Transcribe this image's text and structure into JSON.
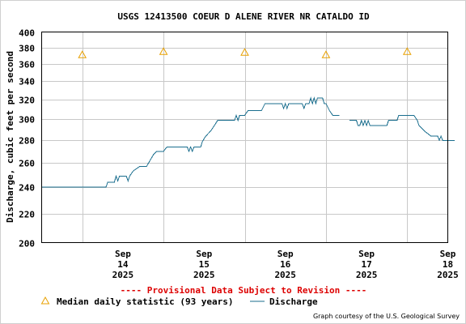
{
  "chart_data": {
    "type": "line",
    "title": "USGS 12413500 COEUR D ALENE RIVER NR CATALDO ID",
    "ylabel": "Discharge, cubic feet per second",
    "xlabel": "",
    "y_scale": "log",
    "ylim": [
      200,
      400
    ],
    "y_ticks": [
      200,
      220,
      240,
      260,
      280,
      300,
      320,
      340,
      360,
      380,
      400
    ],
    "x_range": [
      "2025-09-13 12:00",
      "2025-09-18 12:00"
    ],
    "x_ticks": [
      {
        "date": "2025-09-14",
        "month": "Sep",
        "day": "14",
        "year": "2025"
      },
      {
        "date": "2025-09-15",
        "month": "Sep",
        "day": "15",
        "year": "2025"
      },
      {
        "date": "2025-09-16",
        "month": "Sep",
        "day": "16",
        "year": "2025"
      },
      {
        "date": "2025-09-17",
        "month": "Sep",
        "day": "17",
        "year": "2025"
      },
      {
        "date": "2025-09-18",
        "month": "Sep",
        "day": "18",
        "year": "2025"
      }
    ],
    "grid": true,
    "legend_position": "bottom",
    "series": [
      {
        "name": "Median daily statistic (93 years)",
        "marker": "triangle",
        "color": "#e8a000",
        "points": [
          {
            "x": "2025-09-14 00:00",
            "y": 371
          },
          {
            "x": "2025-09-15 00:00",
            "y": 375
          },
          {
            "x": "2025-09-16 00:00",
            "y": 374
          },
          {
            "x": "2025-09-17 00:00",
            "y": 371
          },
          {
            "x": "2025-09-18 00:00",
            "y": 375
          }
        ]
      },
      {
        "name": "Discharge",
        "color": "#1a6e8e",
        "segments": [
          [
            {
              "x": "2025-09-13 12:00",
              "y": 240
            },
            {
              "x": "2025-09-14 07:00",
              "y": 240
            },
            {
              "x": "2025-09-14 07:30",
              "y": 244
            },
            {
              "x": "2025-09-14 09:30",
              "y": 244
            },
            {
              "x": "2025-09-14 10:00",
              "y": 249
            },
            {
              "x": "2025-09-14 10:30",
              "y": 245
            },
            {
              "x": "2025-09-14 11:00",
              "y": 249
            },
            {
              "x": "2025-09-14 13:00",
              "y": 249
            },
            {
              "x": "2025-09-14 13:30",
              "y": 245
            },
            {
              "x": "2025-09-14 14:00",
              "y": 249
            },
            {
              "x": "2025-09-14 15:00",
              "y": 253
            },
            {
              "x": "2025-09-14 17:00",
              "y": 257
            },
            {
              "x": "2025-09-14 19:00",
              "y": 257
            },
            {
              "x": "2025-09-14 20:00",
              "y": 262
            },
            {
              "x": "2025-09-14 21:00",
              "y": 267
            },
            {
              "x": "2025-09-14 22:00",
              "y": 270
            },
            {
              "x": "2025-09-15 00:00",
              "y": 270
            },
            {
              "x": "2025-09-15 01:00",
              "y": 274
            },
            {
              "x": "2025-09-15 07:00",
              "y": 274
            },
            {
              "x": "2025-09-15 07:30",
              "y": 270
            },
            {
              "x": "2025-09-15 08:00",
              "y": 274
            },
            {
              "x": "2025-09-15 08:30",
              "y": 270
            },
            {
              "x": "2025-09-15 09:00",
              "y": 274
            },
            {
              "x": "2025-09-15 11:00",
              "y": 274
            },
            {
              "x": "2025-09-15 11:30",
              "y": 279
            },
            {
              "x": "2025-09-15 12:30",
              "y": 284
            },
            {
              "x": "2025-09-15 14:00",
              "y": 289
            },
            {
              "x": "2025-09-15 15:00",
              "y": 294
            },
            {
              "x": "2025-09-15 16:00",
              "y": 299
            },
            {
              "x": "2025-09-15 21:00",
              "y": 299
            },
            {
              "x": "2025-09-15 21:30",
              "y": 304
            },
            {
              "x": "2025-09-15 22:00",
              "y": 299
            },
            {
              "x": "2025-09-15 22:30",
              "y": 304
            },
            {
              "x": "2025-09-16 00:00",
              "y": 304
            },
            {
              "x": "2025-09-16 01:00",
              "y": 309
            },
            {
              "x": "2025-09-16 05:00",
              "y": 309
            },
            {
              "x": "2025-09-16 06:00",
              "y": 316
            },
            {
              "x": "2025-09-16 11:00",
              "y": 316
            },
            {
              "x": "2025-09-16 11:30",
              "y": 311
            },
            {
              "x": "2025-09-16 12:00",
              "y": 316
            },
            {
              "x": "2025-09-16 12:30",
              "y": 311
            },
            {
              "x": "2025-09-16 13:00",
              "y": 316
            },
            {
              "x": "2025-09-16 17:00",
              "y": 316
            },
            {
              "x": "2025-09-16 17:30",
              "y": 311
            },
            {
              "x": "2025-09-16 18:00",
              "y": 316
            },
            {
              "x": "2025-09-16 19:00",
              "y": 316
            },
            {
              "x": "2025-09-16 19:30",
              "y": 322
            },
            {
              "x": "2025-09-16 20:00",
              "y": 316
            },
            {
              "x": "2025-09-16 20:30",
              "y": 322
            },
            {
              "x": "2025-09-16 21:00",
              "y": 316
            },
            {
              "x": "2025-09-16 21:30",
              "y": 322
            },
            {
              "x": "2025-09-16 23:00",
              "y": 322
            },
            {
              "x": "2025-09-16 23:30",
              "y": 316
            },
            {
              "x": "2025-09-17 00:00",
              "y": 316
            },
            {
              "x": "2025-09-17 01:00",
              "y": 309
            },
            {
              "x": "2025-09-17 02:00",
              "y": 304
            },
            {
              "x": "2025-09-17 04:00",
              "y": 304
            }
          ],
          [
            {
              "x": "2025-09-17 07:00",
              "y": 299
            },
            {
              "x": "2025-09-17 09:00",
              "y": 299
            },
            {
              "x": "2025-09-17 09:30",
              "y": 294
            },
            {
              "x": "2025-09-17 10:00",
              "y": 294
            },
            {
              "x": "2025-09-17 10:30",
              "y": 299
            },
            {
              "x": "2025-09-17 11:00",
              "y": 294
            },
            {
              "x": "2025-09-17 11:30",
              "y": 299
            },
            {
              "x": "2025-09-17 12:00",
              "y": 294
            },
            {
              "x": "2025-09-17 12:30",
              "y": 299
            },
            {
              "x": "2025-09-17 13:00",
              "y": 294
            },
            {
              "x": "2025-09-17 18:00",
              "y": 294
            },
            {
              "x": "2025-09-17 18:30",
              "y": 299
            },
            {
              "x": "2025-09-17 21:00",
              "y": 299
            },
            {
              "x": "2025-09-17 21:30",
              "y": 304
            },
            {
              "x": "2025-09-18 02:00",
              "y": 304
            },
            {
              "x": "2025-09-18 03:00",
              "y": 299
            },
            {
              "x": "2025-09-18 03:30",
              "y": 294
            },
            {
              "x": "2025-09-18 05:00",
              "y": 289
            },
            {
              "x": "2025-09-18 07:00",
              "y": 284
            },
            {
              "x": "2025-09-18 09:00",
              "y": 284
            },
            {
              "x": "2025-09-18 09:30",
              "y": 280
            },
            {
              "x": "2025-09-18 10:00",
              "y": 284
            },
            {
              "x": "2025-09-18 10:30",
              "y": 280
            },
            {
              "x": "2025-09-18 12:00",
              "y": 280
            },
            {
              "x": "2025-09-18 14:00",
              "y": 280
            }
          ]
        ]
      }
    ],
    "provisional_note": "---- Provisional Data Subject to Revision ----",
    "credit": "Graph courtesy of the U.S. Geological Survey"
  },
  "colors": {
    "grid": "#c8c8c8",
    "axis": "#000000",
    "discharge": "#1a6e8e",
    "median": "#e8a000",
    "provisional": "#dd0000",
    "frame": "#d0d0d0"
  }
}
